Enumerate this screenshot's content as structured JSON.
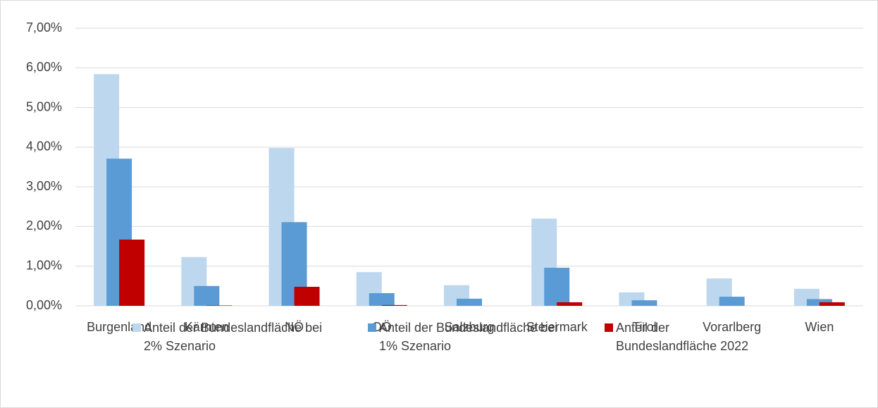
{
  "chart_data": {
    "type": "bar",
    "categories": [
      "Burgenland",
      "Kärnten",
      "NÖ",
      "OÖ",
      "Salzburg",
      "Steiermark",
      "Tirol",
      "Vorarlberg",
      "Wien"
    ],
    "series": [
      {
        "name": "Anteil der Bundeslandfläche bei 2% Szenario",
        "color": "#bdd7ee",
        "values": [
          5.84,
          1.23,
          3.98,
          0.85,
          0.52,
          2.2,
          0.34,
          0.69,
          0.43
        ]
      },
      {
        "name": "Anteil der Bundeslandfläche bei 1% Szenario",
        "color": "#5b9bd5",
        "values": [
          3.71,
          0.5,
          2.11,
          0.32,
          0.18,
          0.96,
          0.14,
          0.23,
          0.17
        ]
      },
      {
        "name": "Anteil der Bundeslandfläche 2022",
        "color": "#c00000",
        "values": [
          1.67,
          0.01,
          0.48,
          0.02,
          0,
          0.09,
          0,
          0,
          0.09
        ]
      }
    ],
    "ylim": [
      0,
      7
    ],
    "yticks": [
      {
        "value": 0,
        "label": "0,00%"
      },
      {
        "value": 1,
        "label": "1,00%"
      },
      {
        "value": 2,
        "label": "2,00%"
      },
      {
        "value": 3,
        "label": "3,00%"
      },
      {
        "value": 4,
        "label": "4,00%"
      },
      {
        "value": 5,
        "label": "5,00%"
      },
      {
        "value": 6,
        "label": "6,00%"
      },
      {
        "value": 7,
        "label": "7,00%"
      }
    ],
    "grid": true,
    "legend": "bottom"
  }
}
